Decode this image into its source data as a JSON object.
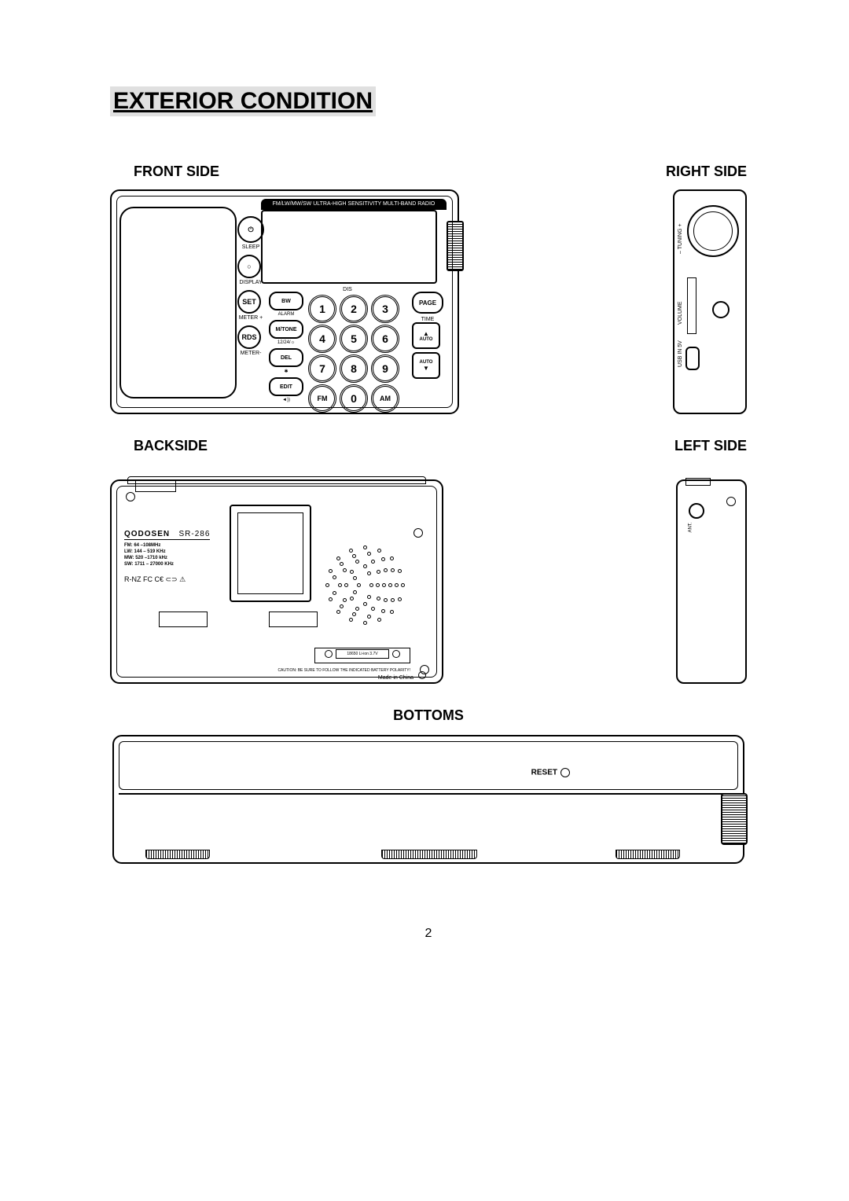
{
  "title": "EXTERIOR CONDITION",
  "labels": {
    "front": "FRONT SIDE",
    "right": "RIGHT SIDE",
    "back": "BACKSIDE",
    "left": "LEFT SIDE",
    "bottom": "BOTTOMS"
  },
  "front": {
    "banner": "FM/LW/MW/SW ULTRA-HIGH SENSITIVITY MULTI-BAND RADIO",
    "col": [
      {
        "icon": "⏻",
        "label": "SLEEP"
      },
      {
        "icon": "○",
        "label": "DISPLAY"
      },
      {
        "icon": "SET",
        "label": "METER +"
      },
      {
        "icon": "RDS",
        "label": "METER-"
      }
    ],
    "fn": [
      {
        "t": "BW",
        "l": "ALARM"
      },
      {
        "t": "M/TONE",
        "l": "12/24/☼"
      },
      {
        "t": "DEL",
        "l": "✱"
      },
      {
        "t": "EDIT",
        "l": "◄))"
      }
    ],
    "keys": [
      [
        "1",
        "2",
        "3"
      ],
      [
        "4",
        "5",
        "6"
      ],
      [
        "7",
        "8",
        "9"
      ],
      [
        "FM",
        "0",
        "AM"
      ]
    ],
    "side": [
      {
        "t": "PAGE",
        "l": "TIME"
      },
      {
        "t": "▲\nAUTO"
      },
      {
        "t": "AUTO\n▼"
      }
    ],
    "dis": "DIS"
  },
  "right": {
    "tuning": "– TUNING +",
    "volume": "VOLUME",
    "usb": "USB IN 5V",
    "hp": "♫"
  },
  "back": {
    "brand": "QODOSEN",
    "model": "SR-286",
    "specs": [
      "FM: 64 –108MHz",
      "LW: 144 – 519 KHz",
      "MW: 520 –1710 kHz",
      "SW: 1711 – 27000 KHz"
    ],
    "cert": "R-NZ FC C€ ⊂⊃ ⚠",
    "batt": "18650 Li-ion 3.7V",
    "caution": "CAUTION: BE SURE TO FOLLOW THE INDICATED BATTERY POLARITY!",
    "made": "Made in China"
  },
  "left": {
    "ant": "ANT."
  },
  "bottom": {
    "reset": "RESET"
  },
  "page": "2",
  "colors": {
    "bg": "#ffffff",
    "line": "#000000",
    "title_bg": "#e0e0e0"
  }
}
